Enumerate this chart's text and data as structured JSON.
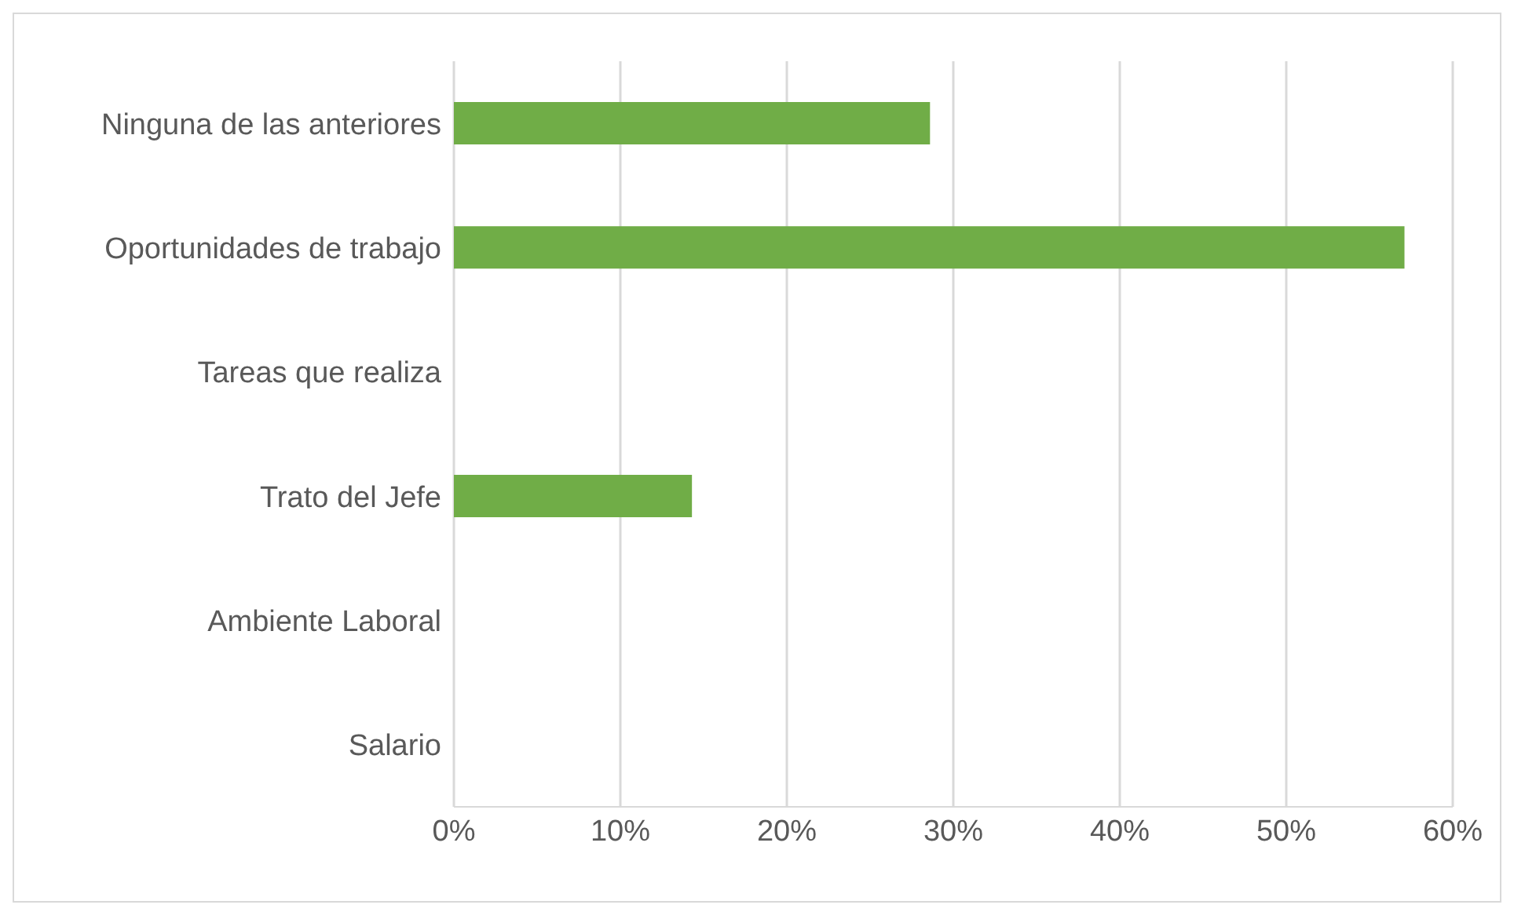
{
  "chart_data": {
    "type": "bar",
    "orientation": "horizontal",
    "categories": [
      "Ninguna de las anteriores",
      "Oportunidades de trabajo",
      "Tareas que realiza",
      "Trato del Jefe",
      "Ambiente Laboral",
      "Salario"
    ],
    "values": [
      28.6,
      57.1,
      0,
      14.3,
      0,
      0
    ],
    "color": "#70ad47",
    "xlim": [
      0,
      60
    ],
    "xticks": [
      {
        "value": 0,
        "label": "0%"
      },
      {
        "value": 10,
        "label": "10%"
      },
      {
        "value": 20,
        "label": "20%"
      },
      {
        "value": 30,
        "label": "30%"
      },
      {
        "value": 40,
        "label": "40%"
      },
      {
        "value": 50,
        "label": "50%"
      },
      {
        "value": 60,
        "label": "60%"
      }
    ],
    "grid": "x"
  }
}
